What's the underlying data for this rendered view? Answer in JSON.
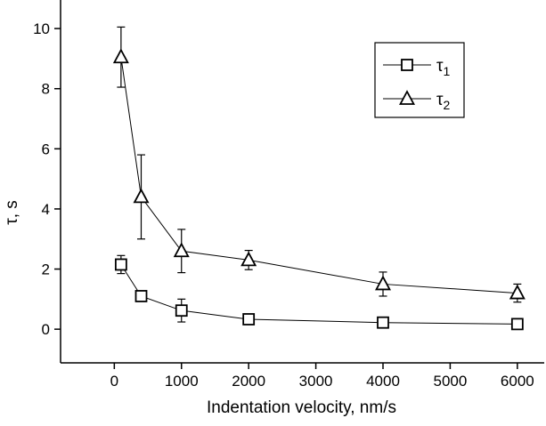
{
  "chart_data": {
    "type": "scatter",
    "title": "",
    "xlabel": "Indentation velocity, nm/s",
    "ylabel": "τ, s",
    "x": [
      100,
      400,
      1000,
      2000,
      4000,
      6000
    ],
    "x_ticks": [
      0,
      1000,
      2000,
      3000,
      4000,
      5000,
      6000
    ],
    "y_ticks": [
      0,
      2,
      4,
      6,
      8,
      10
    ],
    "xlim": [
      -800,
      6400
    ],
    "ylim": [
      -1.12,
      10.95
    ],
    "grid": false,
    "legend_position": "top-right-inside",
    "axis_color": "#000000",
    "marker_fill": "#ffffff",
    "series": [
      {
        "name": "tau1",
        "label": "τ",
        "sub": "1",
        "marker": "square",
        "values": [
          2.15,
          1.1,
          0.62,
          0.33,
          0.22,
          0.17
        ],
        "errors": [
          0.3,
          0.15,
          0.38,
          0.15,
          0.12,
          0.1
        ]
      },
      {
        "name": "tau2",
        "label": "τ",
        "sub": "2",
        "marker": "triangle",
        "values": [
          9.05,
          4.4,
          2.6,
          2.3,
          1.5,
          1.2
        ],
        "errors": [
          1.0,
          1.4,
          0.72,
          0.32,
          0.4,
          0.3
        ]
      }
    ]
  }
}
